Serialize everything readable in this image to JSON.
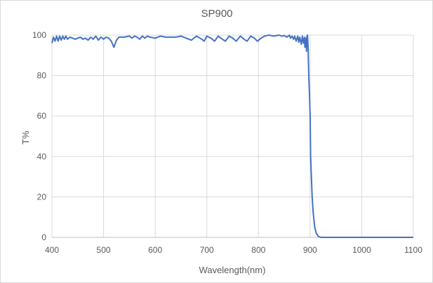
{
  "chart_data": {
    "type": "line",
    "title": "SP900",
    "xlabel": "Wavelength(nm)",
    "ylabel": "T%",
    "xlim": [
      400,
      1100
    ],
    "ylim": [
      0,
      100
    ],
    "xticks": [
      400,
      500,
      600,
      700,
      800,
      900,
      1000,
      1100
    ],
    "yticks": [
      0,
      20,
      40,
      60,
      80,
      100
    ],
    "grid": true,
    "line_color": "#4472C4",
    "series": [
      {
        "x": [
          400,
          403,
          406,
          409,
          412,
          415,
          418,
          421,
          424,
          427,
          430,
          435,
          440,
          445,
          450,
          455,
          460,
          465,
          470,
          475,
          480,
          485,
          490,
          495,
          500,
          505,
          510,
          515,
          520,
          525,
          530,
          540,
          550,
          555,
          560,
          565,
          570,
          575,
          580,
          585,
          590,
          600,
          610,
          620,
          630,
          640,
          650,
          660,
          670,
          680,
          690,
          695,
          700,
          708,
          715,
          722,
          730,
          736,
          743,
          750,
          757,
          765,
          772,
          778,
          785,
          792,
          798,
          805,
          812,
          820,
          830,
          840,
          845,
          850,
          855,
          860,
          862,
          865,
          868,
          870,
          873,
          876,
          878,
          880,
          883,
          885,
          887,
          889,
          890,
          892,
          893,
          894,
          895,
          896,
          897.5,
          899,
          900,
          901,
          902.5,
          904,
          906,
          909,
          912,
          916,
          921,
          1100
        ],
        "y": [
          96,
          99,
          97,
          99.5,
          97,
          99.5,
          97.5,
          99.5,
          98,
          99.5,
          98,
          99,
          98.5,
          98,
          98.5,
          99,
          98,
          98.5,
          97.5,
          99,
          98,
          99.5,
          97.5,
          99,
          98,
          99,
          98.5,
          97,
          94,
          97.5,
          99,
          99,
          99.5,
          98.5,
          99.5,
          99,
          98,
          99.5,
          98.5,
          99.5,
          99,
          98.5,
          99.5,
          99,
          99,
          99,
          99.5,
          98.5,
          97.5,
          99.5,
          98,
          97,
          99.5,
          98.5,
          97,
          99.5,
          98,
          97,
          99.5,
          98.5,
          97,
          99.5,
          98,
          97,
          99.5,
          98.5,
          97,
          98.5,
          99.5,
          100,
          99.5,
          100,
          99.5,
          99.8,
          99,
          100,
          98.5,
          99.5,
          98,
          99.5,
          97,
          99.5,
          96.5,
          99,
          95.5,
          99.5,
          96,
          99,
          94,
          98.5,
          92,
          99.5,
          100,
          95,
          80,
          70,
          60,
          40,
          30,
          20,
          12,
          5,
          2,
          0.5,
          0,
          0
        ]
      }
    ]
  }
}
